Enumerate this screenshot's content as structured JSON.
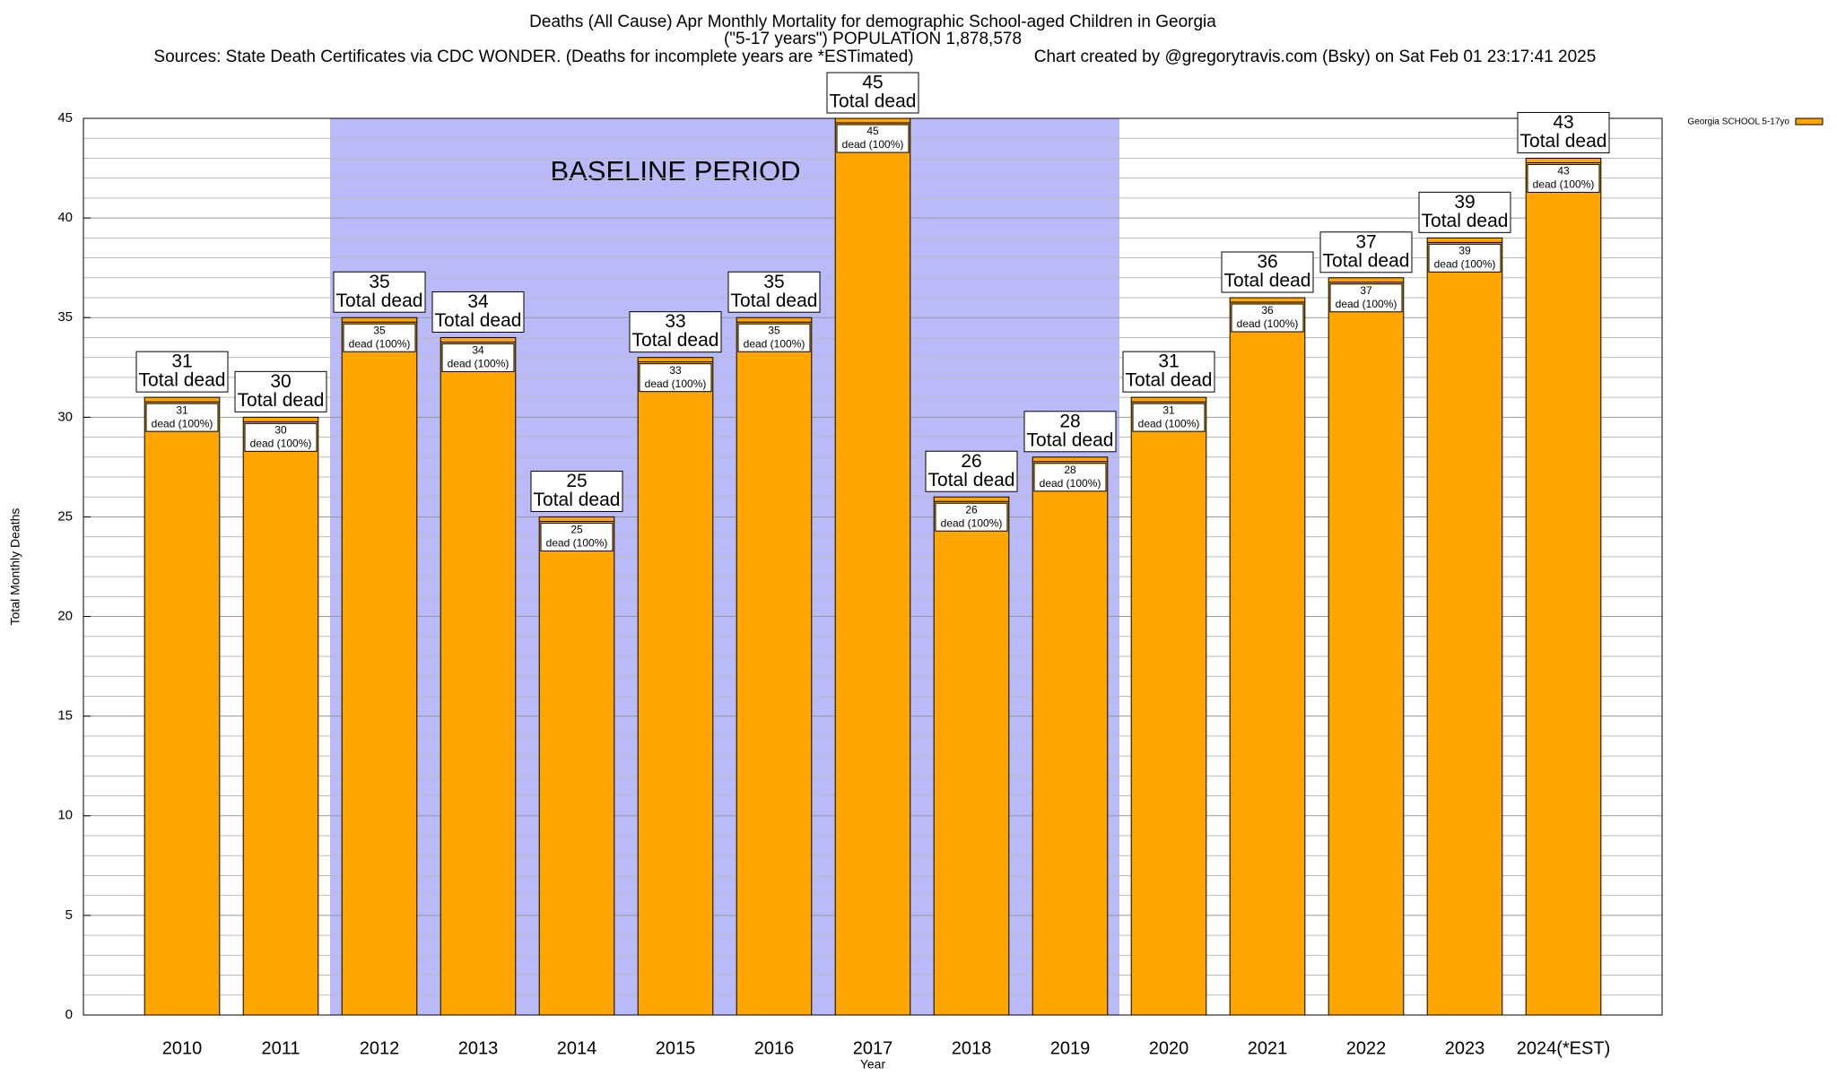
{
  "chart_data": {
    "type": "bar",
    "title": "Deaths (All Cause) Apr Monthly Mortality for demographic School-aged Children in Georgia",
    "subtitle": "(\"5-17 years\") POPULATION 1,878,578",
    "sources": "Sources: State Death Certificates via CDC WONDER. (Deaths for incomplete years are *ESTimated)",
    "credit": "Chart created by @gregorytravis.com (Bsky) on Sat Feb 01 23:17:41 2025",
    "x_label": "Year",
    "y_label": "Total Monthly Deaths",
    "categories": [
      "2010",
      "2011",
      "2012",
      "2013",
      "2014",
      "2015",
      "2016",
      "2017",
      "2018",
      "2019",
      "2020",
      "2021",
      "2022",
      "2023",
      "2024(*EST)"
    ],
    "series": [
      {
        "name": "Georgia SCHOOL 5-17yo",
        "color": "#ffa500",
        "values": [
          31,
          30,
          35,
          34,
          25,
          33,
          35,
          45,
          26,
          28,
          31,
          36,
          37,
          39,
          43
        ]
      }
    ],
    "total_label": "Total dead",
    "segment_label": "dead (100%)",
    "baseline": {
      "label": "BASELINE PERIOD",
      "start": "2012",
      "end": "2019",
      "color": "#babaf8"
    },
    "ylim": [
      0,
      45
    ],
    "yticks": [
      0,
      5,
      10,
      15,
      20,
      25,
      30,
      35,
      40,
      45
    ],
    "minor_yticks": [
      1,
      2,
      3,
      4,
      6,
      7,
      8,
      9,
      11,
      12,
      13,
      14,
      16,
      17,
      18,
      19,
      21,
      22,
      23,
      24,
      26,
      27,
      28,
      29,
      31,
      32,
      33,
      34,
      36,
      37,
      38,
      39,
      41,
      42,
      43,
      44
    ],
    "grid": true,
    "legend": "top-right"
  }
}
